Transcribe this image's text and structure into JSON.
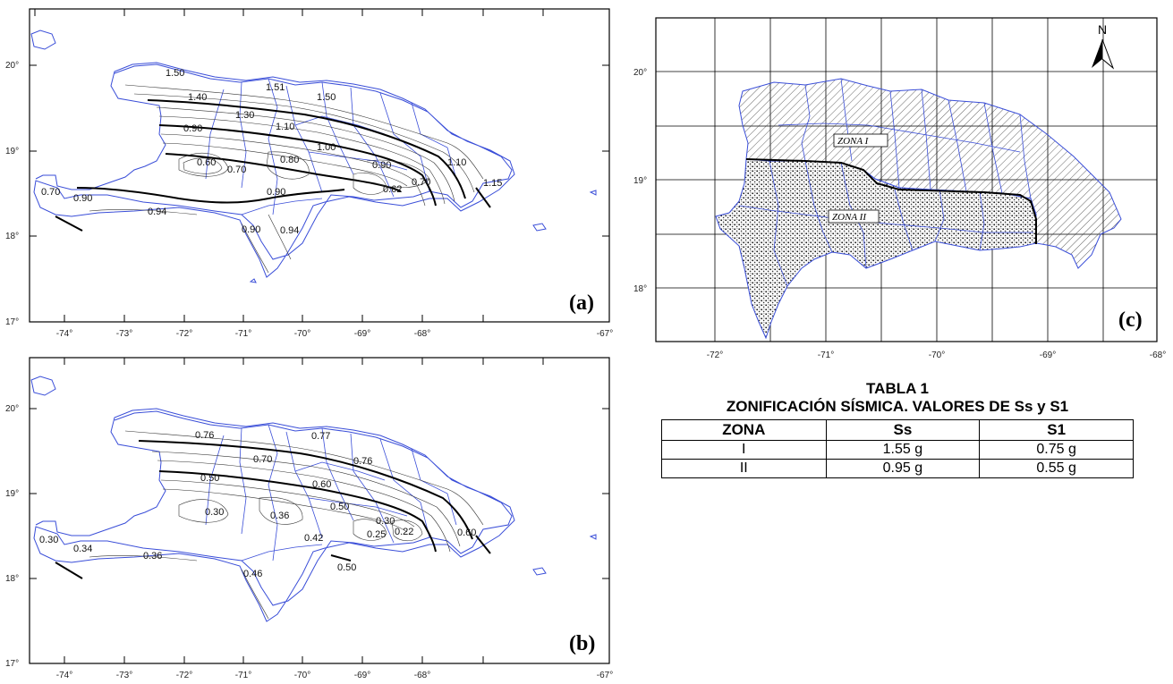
{
  "panels": {
    "a": {
      "label": "(a)",
      "lat_ticks": [
        "20°",
        "19°",
        "18°",
        "17°"
      ],
      "lon_ticks": [
        "-74°",
        "-73°",
        "-72°",
        "-71°",
        "-70°",
        "-69°",
        "-68°",
        "-67°"
      ],
      "contour_labels": [
        "1.50",
        "1.51",
        "1.50",
        "1.40",
        "1.30",
        "1.10",
        "0.90",
        "1.00",
        "0.60",
        "0.70",
        "0.80",
        "0.90",
        "1.10",
        "0.62",
        "0.70",
        "1.15",
        "0.70",
        "0.90",
        "0.90",
        "0.94",
        "0.90",
        "0.94"
      ]
    },
    "b": {
      "label": "(b)",
      "lat_ticks": [
        "20°",
        "19°",
        "18°",
        "17°"
      ],
      "lon_ticks": [
        "-74°",
        "-73°",
        "-72°",
        "-71°",
        "-70°",
        "-69°",
        "-68°",
        "-67°"
      ],
      "contour_labels": [
        "0.76",
        "0.77",
        "0.70",
        "0.76",
        "0.50",
        "0.60",
        "0.30",
        "0.36",
        "0.50",
        "0.30",
        "0.25",
        "0.22",
        "0.60",
        "0.42",
        "0.30",
        "0.34",
        "0.36",
        "0.46",
        "0.50"
      ]
    },
    "c": {
      "label": "(c)",
      "north": "N",
      "lat_ticks": [
        "20°",
        "19°",
        "18°"
      ],
      "lon_ticks": [
        "-72°",
        "-71°",
        "-70°",
        "-69°",
        "-68°"
      ],
      "zone_labels": [
        "ZONA I",
        "ZONA II"
      ]
    }
  },
  "table": {
    "title_line1": "TABLA 1",
    "title_line2": "ZONIFICACIÓN SÍSMICA. VALORES DE Ss y S1",
    "headers": [
      "ZONA",
      "Ss",
      "S1"
    ],
    "rows": [
      [
        "I",
        "1.55 g",
        "0.75 g"
      ],
      [
        "II",
        "0.95 g",
        "0.55 g"
      ]
    ]
  },
  "colors": {
    "coastline": "#3a4ed8",
    "contour": "#333333",
    "frame": "#000000"
  }
}
